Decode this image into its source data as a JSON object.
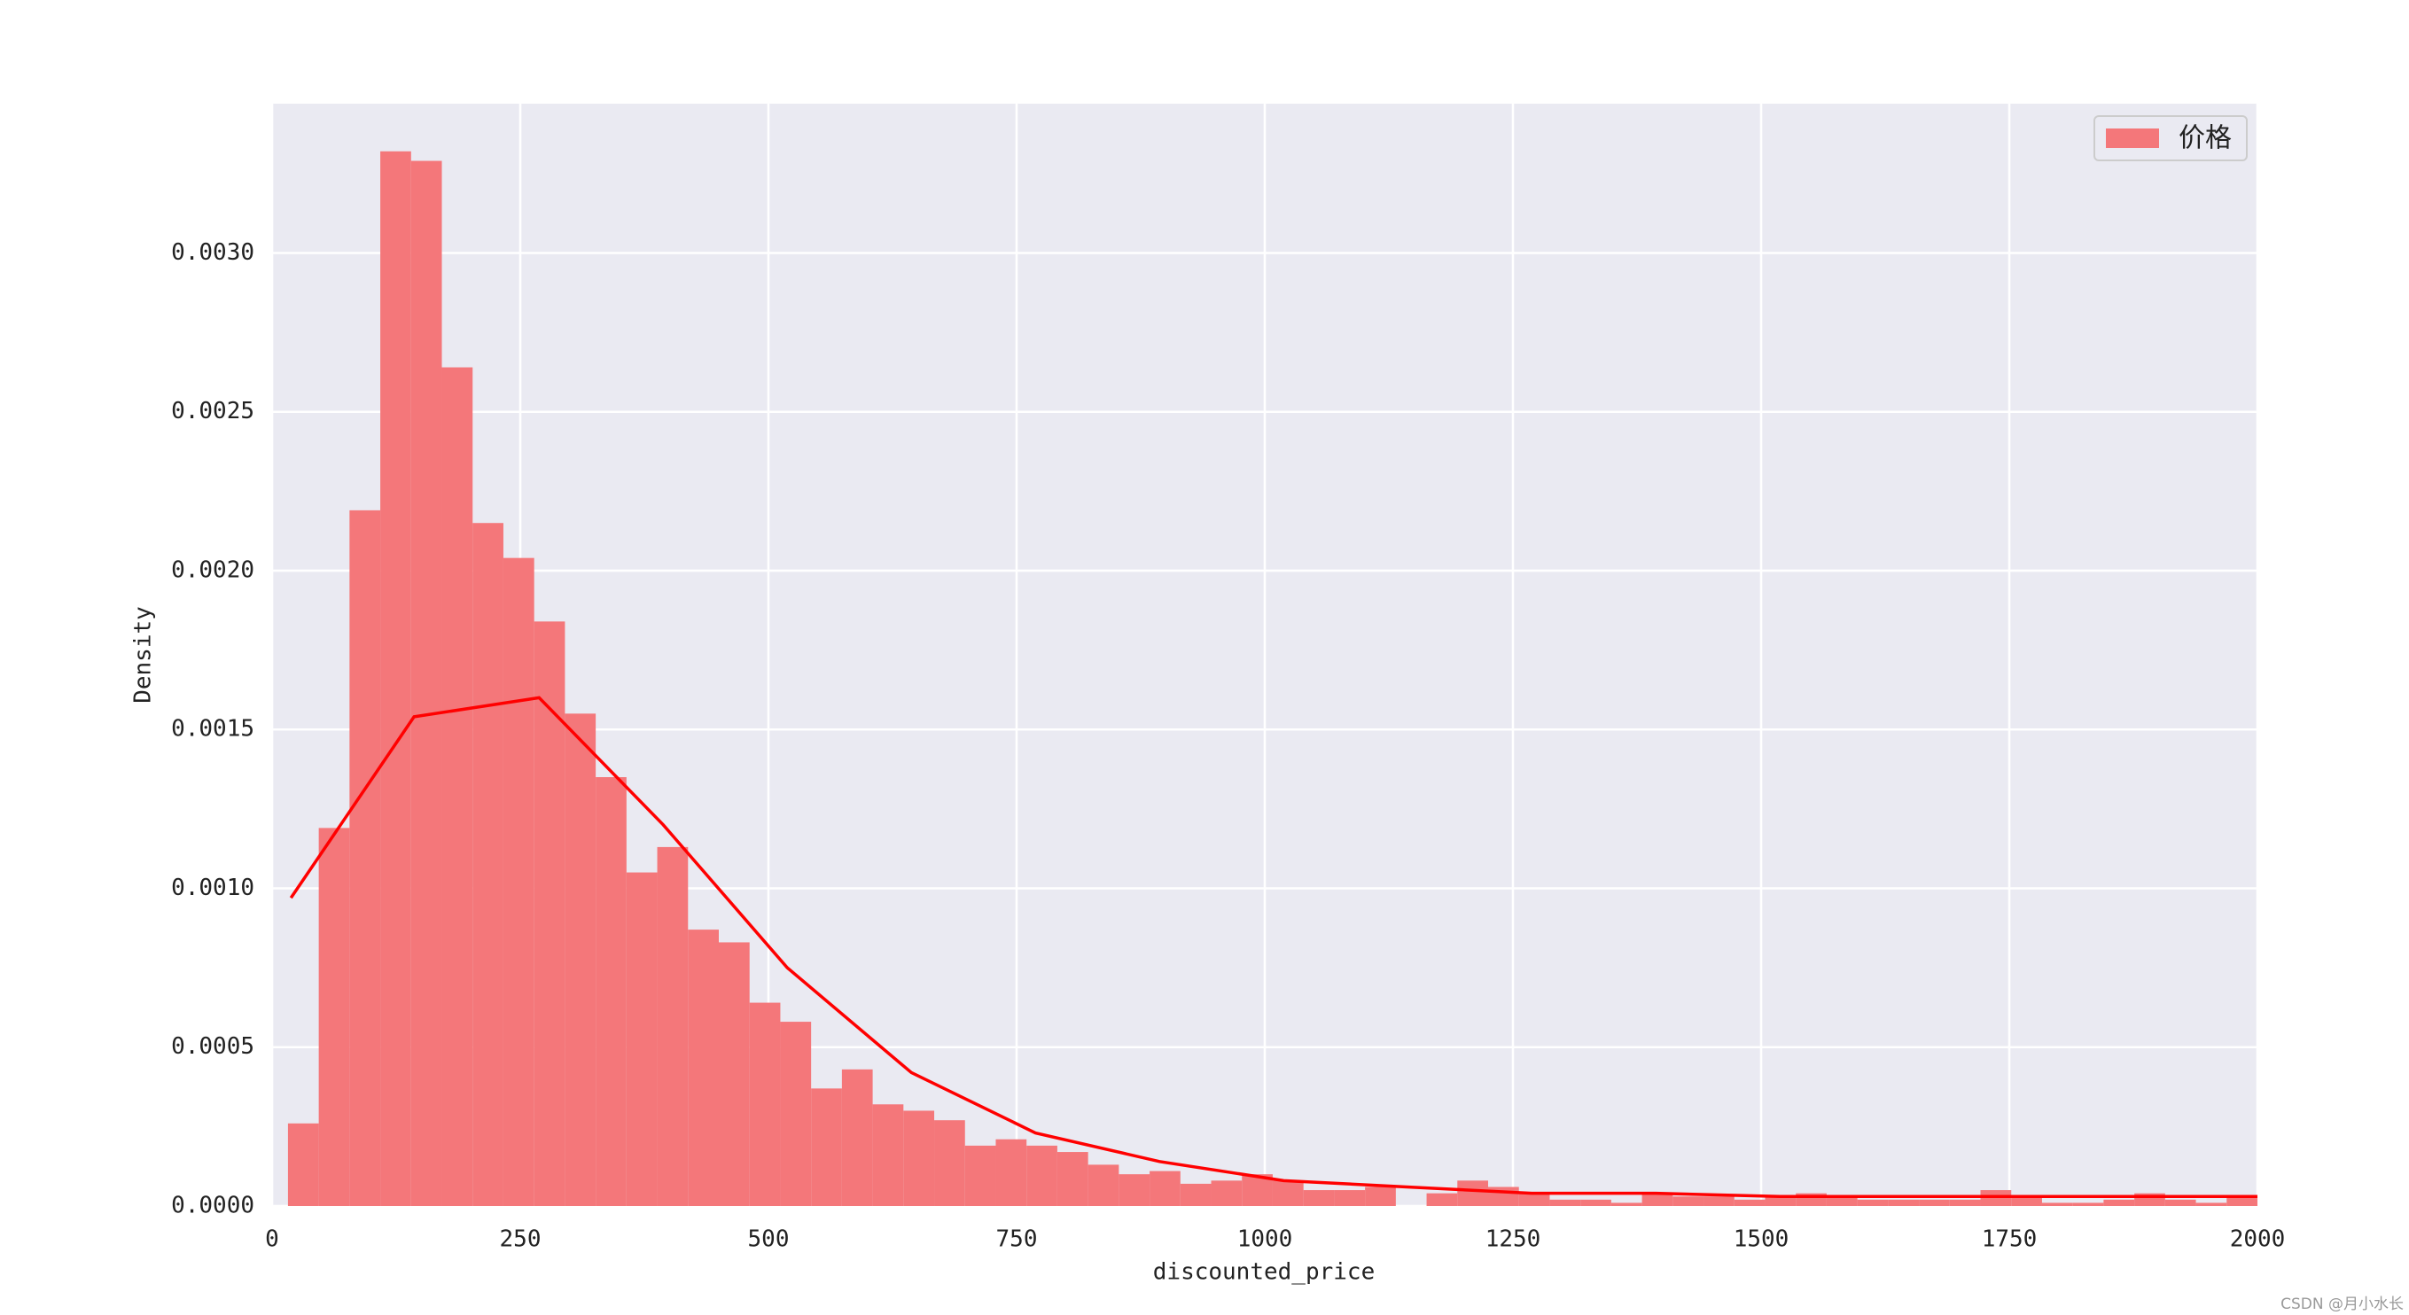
{
  "chart_data": {
    "type": "histogram",
    "xlabel": "discounted_price",
    "ylabel": "Density",
    "bins": [
      16,
      47,
      78,
      109,
      140,
      171,
      202,
      233,
      264,
      295,
      326,
      357,
      388,
      419,
      450,
      481,
      512,
      543,
      574,
      605,
      636,
      667,
      698,
      729,
      760,
      791,
      822,
      853,
      884,
      915,
      946,
      977,
      1008,
      1039,
      1070,
      1101,
      1132,
      1163,
      1194,
      1225,
      1256,
      1287,
      1318,
      1349,
      1380,
      1411,
      1442,
      1473,
      1504,
      1535,
      1566,
      1597,
      1628,
      1659,
      1690,
      1721,
      1752,
      1783,
      1814,
      1845,
      1876,
      1907,
      1938,
      1969,
      2000
    ],
    "series": [
      {
        "name": "价格",
        "color": "#f4777a",
        "values": [
          0.00026,
          0.00119,
          0.00219,
          0.00332,
          0.00329,
          0.00264,
          0.00215,
          0.00204,
          0.00184,
          0.00155,
          0.00135,
          0.00105,
          0.00113,
          0.00087,
          0.00083,
          0.00064,
          0.00058,
          0.00037,
          0.00043,
          0.00032,
          0.0003,
          0.00027,
          0.00019,
          0.00021,
          0.00019,
          0.00017,
          0.00013,
          0.0001,
          0.00011,
          7e-05,
          8e-05,
          0.0001,
          8e-05,
          5e-05,
          5e-05,
          6e-05,
          0,
          4e-05,
          8e-05,
          6e-05,
          4e-05,
          2e-05,
          2e-05,
          1e-05,
          4e-05,
          3e-05,
          3e-05,
          2e-05,
          3e-05,
          4e-05,
          3e-05,
          2e-05,
          2e-05,
          2e-05,
          2e-05,
          5e-05,
          3e-05,
          1e-05,
          1e-05,
          2e-05,
          4e-05,
          2e-05,
          1e-05,
          3e-05,
          6e-05
        ]
      }
    ],
    "kde": {
      "color": "#ff0000",
      "x": [
        19,
        143,
        269,
        394,
        519,
        644,
        769,
        894,
        1019,
        1143,
        1269,
        1394,
        1519,
        1644,
        1769,
        1894,
        2000
      ],
      "values": [
        0.00097,
        0.00154,
        0.0016,
        0.0012,
        0.00075,
        0.00042,
        0.00023,
        0.00014,
        8e-05,
        6e-05,
        4e-05,
        4e-05,
        3e-05,
        3e-05,
        3e-05,
        3e-05,
        3e-05
      ]
    },
    "xlim": [
      0,
      2000
    ],
    "xticks": [
      0,
      250,
      500,
      750,
      1000,
      1250,
      1500,
      1750,
      2000
    ],
    "ylim": [
      0,
      0.00347
    ],
    "yticks": [
      {
        "value": 0,
        "label": "0.0000"
      },
      {
        "value": 0.0005,
        "label": "0.0005"
      },
      {
        "value": 0.001,
        "label": "0.0010"
      },
      {
        "value": 0.0015,
        "label": "0.0015"
      },
      {
        "value": 0.002,
        "label": "0.0020"
      },
      {
        "value": 0.0025,
        "label": "0.0025"
      },
      {
        "value": 0.003,
        "label": "0.0030"
      }
    ],
    "grid": true,
    "background": "#eaeaf2",
    "legend": "upper right"
  },
  "watermark": "CSDN @月小水长"
}
